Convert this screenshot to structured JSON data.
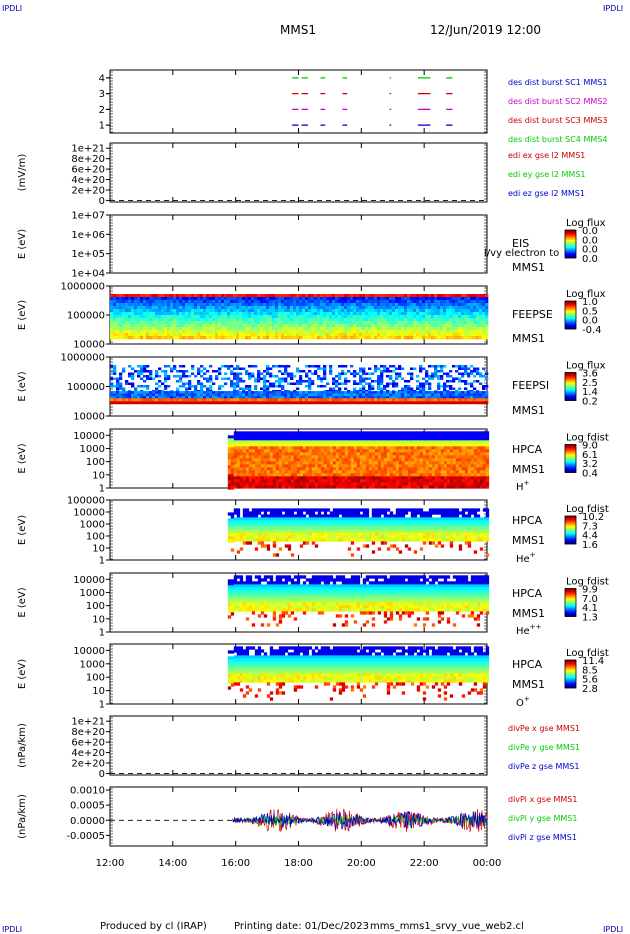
{
  "corner_label": "IPDLI",
  "header": {
    "spacecraft": "MMS1",
    "datetime": "12/Jun/2019 12:00"
  },
  "footer": {
    "produced_by": "Produced by cl (IRAP)",
    "printing_date": "Printing date: 01/Dec/2023",
    "script_name": "mms_mms1_srvy_vue_web2.cl"
  },
  "x_axis": {
    "ticks": [
      "12:00",
      "14:00",
      "16:00",
      "18:00",
      "20:00",
      "22:00",
      "00:00"
    ]
  },
  "colors": {
    "mms1": "#0000cc",
    "mms2": "#cc00cc",
    "mms3": "#cc0000",
    "mms4": "#00cc00"
  },
  "chart_data": [
    {
      "type": "line",
      "panel": "burst",
      "y_ticks": [
        "1",
        "2",
        "3",
        "4"
      ],
      "ylim": [
        0.5,
        4.5
      ],
      "legend": [
        "des dist burst SC1 MMS1",
        "des dist burst SC2 MMS2",
        "des dist burst SC3 MMS3",
        "des dist burst SC4 MMS4"
      ],
      "series": [
        {
          "name": "des dist burst SC1 MMS1",
          "y": 1,
          "color": "#0000cc",
          "intervals": [
            [
              17.8,
              18.0
            ],
            [
              18.1,
              18.3
            ],
            [
              18.7,
              18.85
            ],
            [
              19.4,
              19.55
            ],
            [
              20.9,
              20.95
            ],
            [
              21.8,
              22.2
            ],
            [
              22.7,
              22.9
            ]
          ]
        },
        {
          "name": "des dist burst SC2 MMS2",
          "y": 2,
          "color": "#cc00cc",
          "intervals": [
            [
              17.8,
              18.0
            ],
            [
              18.1,
              18.3
            ],
            [
              18.7,
              18.85
            ],
            [
              19.4,
              19.55
            ],
            [
              20.9,
              20.95
            ],
            [
              21.8,
              22.2
            ],
            [
              22.7,
              22.9
            ]
          ]
        },
        {
          "name": "des dist burst SC3 MMS3",
          "y": 3,
          "color": "#cc0000",
          "intervals": [
            [
              17.8,
              18.0
            ],
            [
              18.1,
              18.3
            ],
            [
              18.7,
              18.85
            ],
            [
              19.4,
              19.55
            ],
            [
              20.9,
              20.95
            ],
            [
              21.8,
              22.2
            ],
            [
              22.7,
              22.9
            ]
          ]
        },
        {
          "name": "des dist burst SC4 MMS4",
          "y": 4,
          "color": "#00cc00",
          "intervals": [
            [
              17.8,
              18.0
            ],
            [
              18.1,
              18.3
            ],
            [
              18.7,
              18.85
            ],
            [
              19.4,
              19.55
            ],
            [
              20.9,
              20.95
            ],
            [
              21.8,
              22.2
            ],
            [
              22.7,
              22.9
            ]
          ]
        }
      ]
    },
    {
      "type": "line",
      "panel": "edi",
      "ylabel": "(mV/m)",
      "y_ticks": [
        "0",
        "2e+20",
        "4e+20",
        "6e+20",
        "8e+20",
        "1e+21"
      ],
      "ylim": [
        -3e+19,
        1.1e+21
      ],
      "zero_line": true,
      "legend": [
        "edi ex gse l2 MMS1",
        "edi ey gse l2 MMS1",
        "edi ez gse l2 MMS1"
      ],
      "legend_colors": [
        "#cc0000",
        "#00cc00",
        "#0000cc"
      ]
    },
    {
      "type": "heatmap",
      "panel": "eis",
      "ylabel": "E (eV)",
      "y_ticks": [
        "1e+04",
        "1e+05",
        "1e+06",
        "1e+07"
      ],
      "ylim": [
        10000.0,
        10000000.0
      ],
      "scale": "log",
      "instrument": [
        "EIS",
        "MMS1"
      ],
      "overlay_text": "l/vy electron to",
      "colorbar": {
        "title": "Log flux",
        "ticks": [
          "0.0",
          "0.0",
          "0.0",
          "0.0"
        ]
      }
    },
    {
      "type": "heatmap",
      "panel": "feeps_e",
      "ylabel": "E (eV)",
      "y_ticks": [
        "10000",
        "100000",
        "1000000"
      ],
      "ylim": [
        10000.0,
        1000000.0
      ],
      "scale": "log",
      "instrument": [
        "FEEPSE",
        "MMS1"
      ],
      "coverage_hours": [
        12.0,
        24.0
      ],
      "colorbar": {
        "title": "Log flux",
        "ticks": [
          "1.0",
          "0.5",
          "0.0",
          "-0.4"
        ]
      }
    },
    {
      "type": "heatmap",
      "panel": "feeps_i",
      "ylabel": "E (eV)",
      "y_ticks": [
        "10000",
        "100000",
        "1000000"
      ],
      "ylim": [
        10000.0,
        1000000.0
      ],
      "scale": "log",
      "instrument": [
        "FEEPSI",
        "MMS1"
      ],
      "coverage_hours": [
        12.0,
        24.0
      ],
      "colorbar": {
        "title": "Log flux",
        "ticks": [
          "3.6",
          "2.5",
          "1.4",
          "0.2"
        ]
      }
    },
    {
      "type": "heatmap",
      "panel": "hpca_h",
      "ylabel": "E (eV)",
      "y_ticks": [
        "1",
        "10",
        "100",
        "1000",
        "10000"
      ],
      "ylim": [
        1,
        30000
      ],
      "scale": "log",
      "instrument": [
        "HPCA",
        "MMS1"
      ],
      "species": "H",
      "species_sup": "+",
      "coverage_hours": [
        15.75,
        24.0
      ],
      "colorbar": {
        "title": "Log fdist",
        "ticks": [
          "9.0",
          "6.1",
          "3.2",
          "0.4"
        ]
      }
    },
    {
      "type": "heatmap",
      "panel": "hpca_he",
      "ylabel": "E (eV)",
      "y_ticks": [
        "1",
        "10",
        "100",
        "1000",
        "10000",
        "100000"
      ],
      "ylim": [
        1,
        100000
      ],
      "scale": "log",
      "instrument": [
        "HPCA",
        "MMS1"
      ],
      "species": "He",
      "species_sup": "+",
      "coverage_hours": [
        15.75,
        24.0
      ],
      "colorbar": {
        "title": "Log fdist",
        "ticks": [
          "10.2",
          "7.3",
          "4.4",
          "1.6"
        ]
      }
    },
    {
      "type": "heatmap",
      "panel": "hpca_he2",
      "ylabel": "E (eV)",
      "y_ticks": [
        "1",
        "10",
        "100",
        "1000",
        "10000"
      ],
      "ylim": [
        1,
        30000
      ],
      "scale": "log",
      "instrument": [
        "HPCA",
        "MMS1"
      ],
      "species": "He",
      "species_sup": "++",
      "coverage_hours": [
        15.75,
        24.0
      ],
      "colorbar": {
        "title": "Log fdist",
        "ticks": [
          "9.9",
          "7.0",
          "4.1",
          "1.3"
        ]
      }
    },
    {
      "type": "heatmap",
      "panel": "hpca_o",
      "ylabel": "E (eV)",
      "y_ticks": [
        "1",
        "10",
        "100",
        "1000",
        "10000"
      ],
      "ylim": [
        1,
        30000
      ],
      "scale": "log",
      "instrument": [
        "HPCA",
        "MMS1"
      ],
      "species": "O",
      "species_sup": "+",
      "coverage_hours": [
        15.75,
        24.0
      ],
      "colorbar": {
        "title": "Log fdist",
        "ticks": [
          "11.4",
          "8.5",
          "5.6",
          "2.8"
        ]
      }
    },
    {
      "type": "line",
      "panel": "divpe",
      "ylabel": "(nPa/km)",
      "y_ticks": [
        "0",
        "2e+20",
        "4e+20",
        "6e+20",
        "8e+20",
        "1e+21"
      ],
      "ylim": [
        -3e+19,
        1.1e+21
      ],
      "zero_line": true,
      "legend": [
        "divPe x gse MMS1",
        "divPe y gse MMS1",
        "divPe z gse MMS1"
      ],
      "legend_colors": [
        "#cc0000",
        "#00cc00",
        "#0000cc"
      ]
    },
    {
      "type": "line",
      "panel": "divpi",
      "ylabel": "(nPa/km)",
      "y_ticks": [
        "-0.0005",
        "0.0000",
        "0.0005",
        "0.0010"
      ],
      "ylim": [
        -0.00085,
        0.0011
      ],
      "zero_line": true,
      "coverage_hours": [
        15.9,
        24.0
      ],
      "amplitude": {
        "x": 0.0004,
        "y": 0.0002,
        "z": 0.0003
      },
      "legend": [
        "divPi x gse MMS1",
        "divPi y gse MMS1",
        "divPi z gse MMS1"
      ],
      "legend_colors": [
        "#cc0000",
        "#00cc00",
        "#0000cc"
      ]
    }
  ]
}
